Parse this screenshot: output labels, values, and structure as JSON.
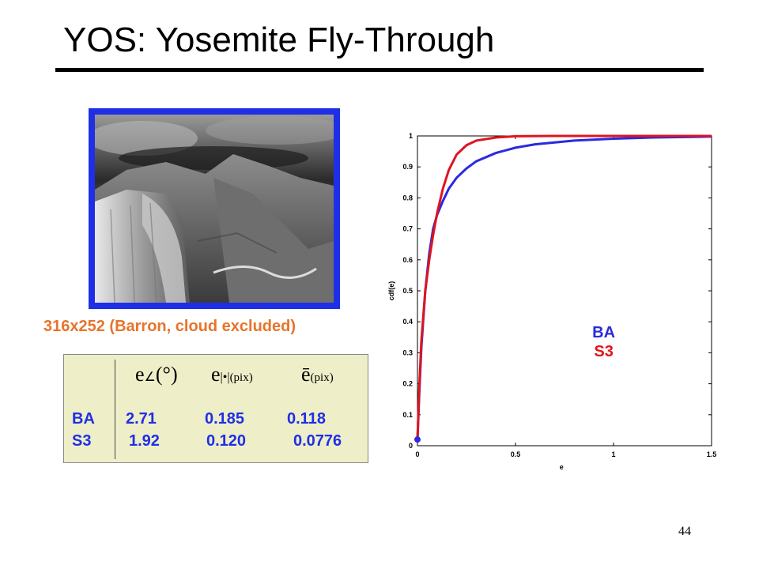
{
  "title": "YOS: Yosemite Fly-Through",
  "photo": {
    "description_icon": "yosemite-frame-image"
  },
  "caption": "316x252 (Barron, cloud excluded)",
  "table": {
    "headers": [
      {
        "symbol": "e",
        "sub": "∠",
        "unit": "(°)"
      },
      {
        "symbol": "e",
        "sub": "|•|",
        "unit": "(pix)"
      },
      {
        "symbol": "ē",
        "sub": "",
        "unit": "(pix)"
      }
    ],
    "rows": [
      {
        "label": "BA",
        "values": [
          "2.71",
          "0.185",
          "0.118"
        ]
      },
      {
        "label": "S3",
        "values": [
          "1.92",
          "0.120",
          "0.0776"
        ]
      }
    ]
  },
  "chart_data": {
    "type": "line",
    "xlabel": "e",
    "ylabel": "cdf(e)",
    "xlim": [
      0,
      1.5
    ],
    "ylim": [
      0,
      1
    ],
    "x_ticks": [
      "0",
      "0.5",
      "1",
      "1.5"
    ],
    "y_ticks": [
      "0",
      "0.1",
      "0.2",
      "0.3",
      "0.4",
      "0.5",
      "0.6",
      "0.7",
      "0.8",
      "0.9",
      "1"
    ],
    "legend_placement": "center-right",
    "series": [
      {
        "name": "BA",
        "color": "#2a2ae0",
        "points": [
          [
            0,
            0.02
          ],
          [
            0.01,
            0.18
          ],
          [
            0.02,
            0.32
          ],
          [
            0.04,
            0.5
          ],
          [
            0.06,
            0.62
          ],
          [
            0.08,
            0.7
          ],
          [
            0.1,
            0.745
          ],
          [
            0.13,
            0.79
          ],
          [
            0.16,
            0.83
          ],
          [
            0.2,
            0.865
          ],
          [
            0.25,
            0.895
          ],
          [
            0.3,
            0.918
          ],
          [
            0.4,
            0.945
          ],
          [
            0.5,
            0.962
          ],
          [
            0.6,
            0.973
          ],
          [
            0.8,
            0.985
          ],
          [
            1.0,
            0.991
          ],
          [
            1.2,
            0.995
          ],
          [
            1.5,
            0.998
          ]
        ]
      },
      {
        "name": "S3",
        "color": "#e0141e",
        "points": [
          [
            0,
            0.02
          ],
          [
            0.01,
            0.2
          ],
          [
            0.02,
            0.34
          ],
          [
            0.04,
            0.5
          ],
          [
            0.06,
            0.6
          ],
          [
            0.08,
            0.68
          ],
          [
            0.1,
            0.75
          ],
          [
            0.13,
            0.83
          ],
          [
            0.16,
            0.89
          ],
          [
            0.2,
            0.94
          ],
          [
            0.25,
            0.97
          ],
          [
            0.3,
            0.985
          ],
          [
            0.4,
            0.995
          ],
          [
            0.5,
            0.999
          ],
          [
            0.7,
            1.0
          ],
          [
            1.0,
            1.0
          ],
          [
            1.5,
            1.0
          ]
        ]
      }
    ]
  },
  "page_number": "44"
}
